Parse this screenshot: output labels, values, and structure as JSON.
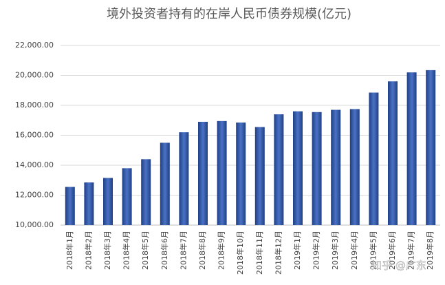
{
  "chart_data": {
    "type": "bar",
    "title": "境外投资者持有的在岸人民币债券规模(亿元)",
    "categories": [
      "2018年1月",
      "2018年2月",
      "2018年3月",
      "2018年4月",
      "2018年5月",
      "2018年6月",
      "2018年7月",
      "2018年8月",
      "2018年9月",
      "2018年10月",
      "2018年11月",
      "2018年12月",
      "2019年1月",
      "2019年2月",
      "2019年3月",
      "2019年4月",
      "2019年5月",
      "2019年6月",
      "2019年7月",
      "2019年8月"
    ],
    "values": [
      12550,
      12850,
      13150,
      13800,
      14400,
      15500,
      16200,
      16900,
      16950,
      16850,
      16550,
      17400,
      17600,
      17550,
      17700,
      17750,
      18850,
      19600,
      20200,
      20350
    ],
    "color": "#2f56a6",
    "ylim": [
      10000,
      22000
    ],
    "yticks": [
      {
        "value": 10000,
        "label": "10,000.00"
      },
      {
        "value": 12000,
        "label": "12,000.00"
      },
      {
        "value": 14000,
        "label": "14,000.00"
      },
      {
        "value": 16000,
        "label": "16,000.00"
      },
      {
        "value": 18000,
        "label": "18,000.00"
      },
      {
        "value": 20000,
        "label": "20,000.00"
      },
      {
        "value": 22000,
        "label": "22,000.00"
      }
    ],
    "grid": true,
    "watermark": "知乎 @广东"
  }
}
